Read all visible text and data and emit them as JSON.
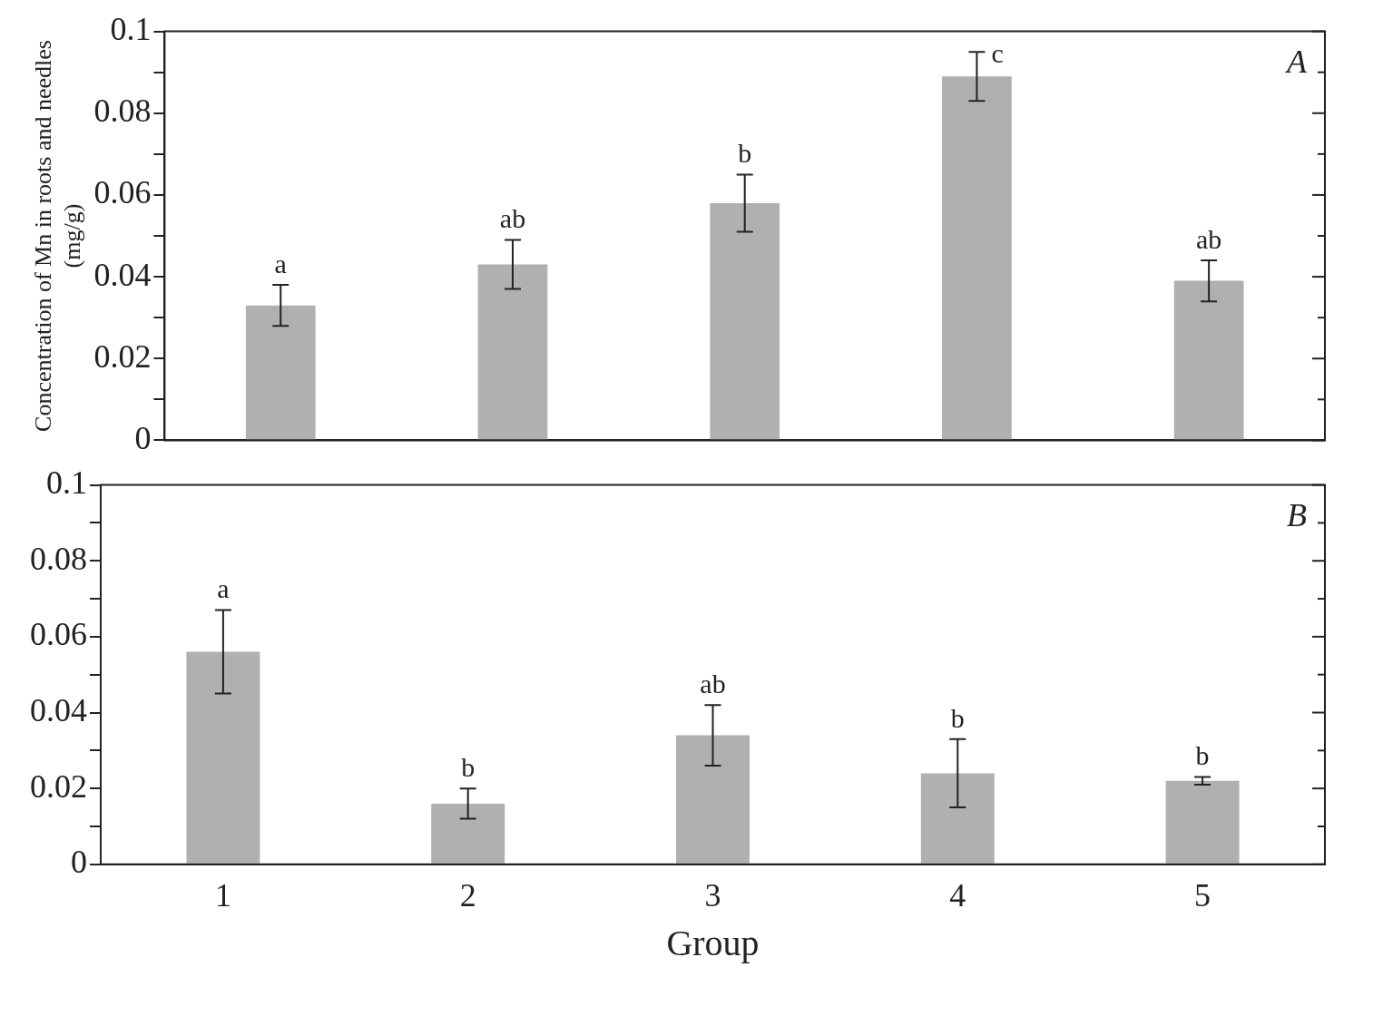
{
  "chart_data": [
    {
      "type": "bar",
      "categories": [
        "1",
        "2",
        "3",
        "4",
        "5"
      ],
      "ylabel": "Concentration of Mn in roots and needles (mg/g)",
      "annotations": [
        "A",
        "a",
        "ab",
        "b",
        "c",
        "ab"
      ],
      "series": [
        {
          "color": "#b0b0b0",
          "values": [
            0.033,
            0.043,
            0.058,
            0.089,
            0.039
          ],
          "errors": [
            0.005,
            0.006,
            0.007,
            0.006,
            0.005
          ]
        }
      ],
      "ylim": [
        0,
        0.1
      ],
      "yticks": [
        0,
        {
          "value": 0.01,
          "label": null
        },
        0.02,
        {
          "value": 0.03,
          "label": null
        },
        0.04,
        {
          "value": 0.05,
          "label": null
        },
        0.06,
        {
          "value": 0.07,
          "label": null
        },
        0.08,
        {
          "value": 0.09,
          "label": null
        },
        0.1
      ],
      "tick_labels": "y",
      "grid": false,
      "legend": false
    },
    {
      "type": "bar",
      "categories": [
        "1",
        "2",
        "3",
        "4",
        "5"
      ],
      "xlabel": "Group",
      "annotations": [
        "B",
        "a",
        "b",
        "ab",
        "b",
        "b"
      ],
      "series": [
        {
          "color": "#b0b0b0",
          "values": [
            0.056,
            0.016,
            0.034,
            0.024,
            0.022
          ],
          "errors": [
            0.011,
            0.004,
            0.008,
            0.009,
            0.001
          ]
        }
      ],
      "ylim": [
        0,
        0.1
      ],
      "yticks": [
        0,
        {
          "value": 0.01,
          "label": null
        },
        0.02,
        {
          "value": 0.03,
          "label": null
        },
        0.04,
        {
          "value": 0.05,
          "label": null
        },
        0.06,
        {
          "value": 0.07,
          "label": null
        },
        0.08,
        {
          "value": 0.09,
          "label": null
        },
        0.1
      ],
      "grid": false,
      "legend": false
    }
  ]
}
